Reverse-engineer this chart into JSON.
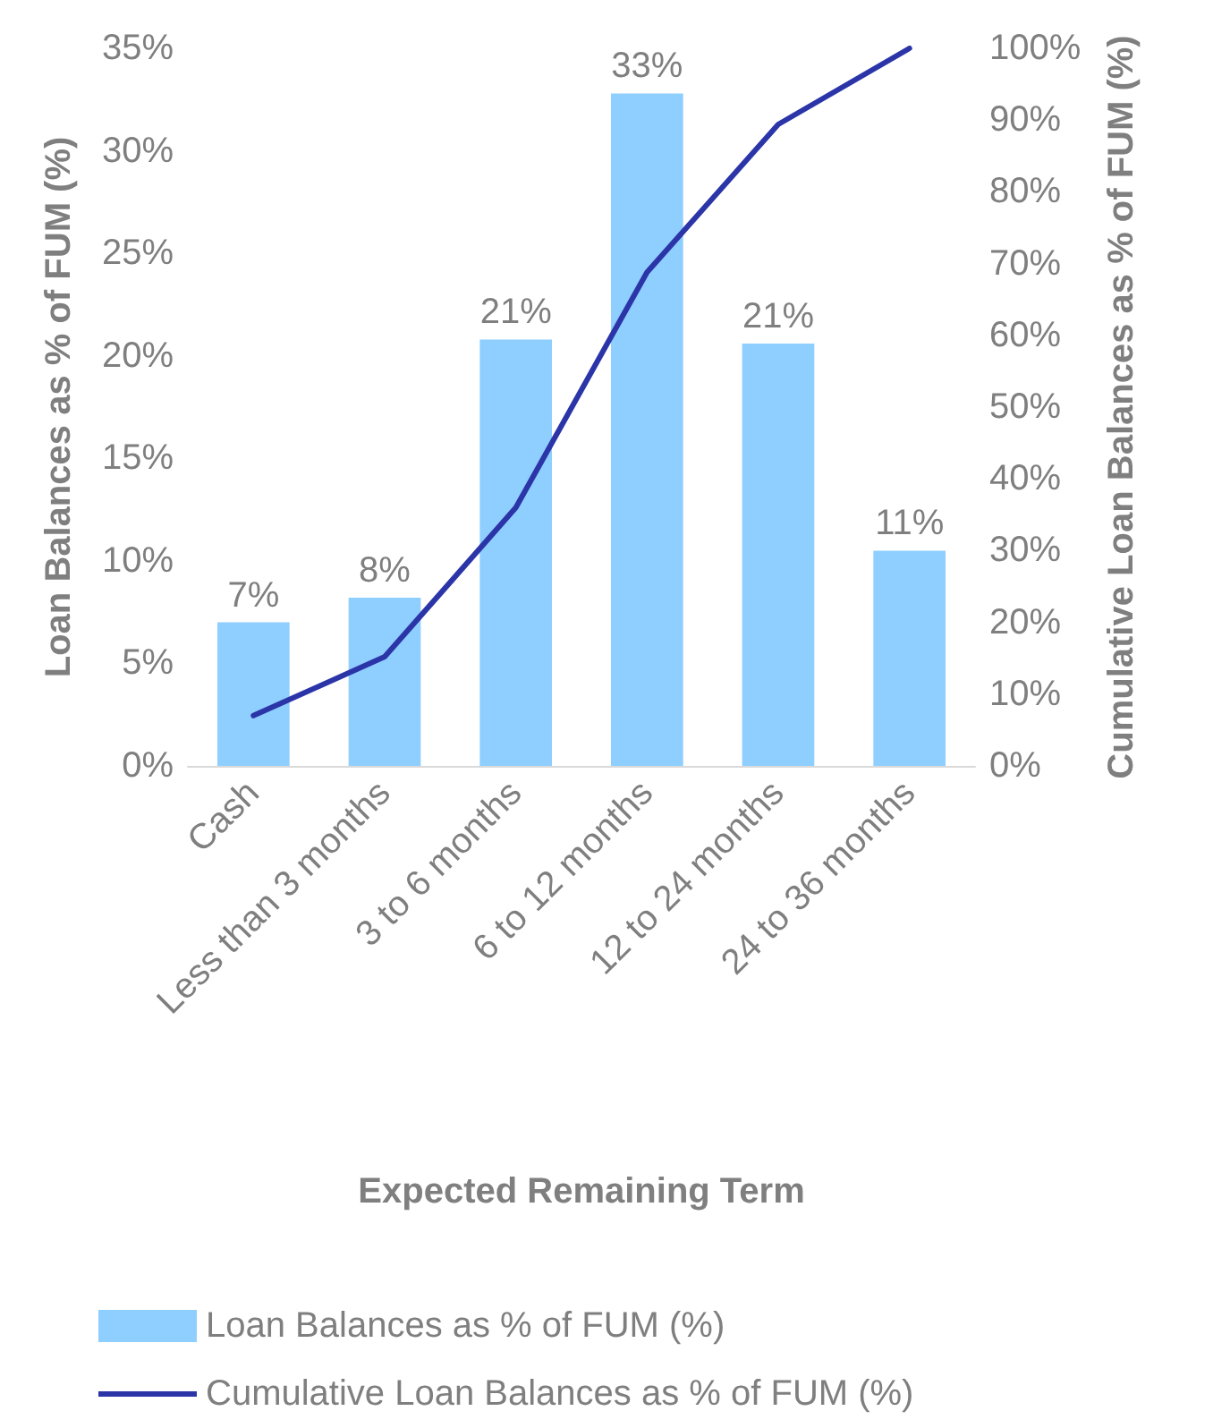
{
  "chart_data": {
    "type": "bar",
    "xlabel": "Expected Remaining Term",
    "ylabel": "Loan Balances as % of FUM (%)",
    "y2label": "Cumulative Loan Balances as % of FUM (%)",
    "categories": [
      "Cash",
      "Less than 3 months",
      "3 to 6 months",
      "6 to 12 months",
      "12 to 24 months",
      "24 to 36 months"
    ],
    "series": [
      {
        "name": "Loan Balances as % of FUM (%)",
        "color": "#8ecfff",
        "values": [
          7.0,
          8.2,
          20.8,
          32.8,
          20.6,
          10.5
        ],
        "value_labels": [
          "7%",
          "8%",
          "21%",
          "33%",
          "21%",
          "11%"
        ]
      },
      {
        "name": "Cumulative Loan Balances as % of FUM (%)",
        "type": "line",
        "axis": "y2",
        "color": "#2b35a8",
        "values": [
          7.0,
          15.2,
          36.0,
          68.8,
          89.4,
          100
        ]
      }
    ],
    "ylim": [
      0,
      35
    ],
    "yticks": [
      {
        "value": 0,
        "label": "0%"
      },
      {
        "value": 5,
        "label": "5%"
      },
      {
        "value": 10,
        "label": "10%"
      },
      {
        "value": 15,
        "label": "15%"
      },
      {
        "value": 20,
        "label": "20%"
      },
      {
        "value": 25,
        "label": "25%"
      },
      {
        "value": 30,
        "label": "30%"
      },
      {
        "value": 35,
        "label": "35%"
      }
    ],
    "y2lim": [
      0,
      100
    ],
    "y2ticks": [
      {
        "value": 0,
        "label": "0%"
      },
      {
        "value": 10,
        "label": "10%"
      },
      {
        "value": 20,
        "label": "20%"
      },
      {
        "value": 30,
        "label": "30%"
      },
      {
        "value": 40,
        "label": "40%"
      },
      {
        "value": 50,
        "label": "50%"
      },
      {
        "value": 60,
        "label": "60%"
      },
      {
        "value": 70,
        "label": "70%"
      },
      {
        "value": 80,
        "label": "80%"
      },
      {
        "value": 90,
        "label": "90%"
      },
      {
        "value": 100,
        "label": "100%"
      }
    ],
    "grid": false,
    "legend": "bottom",
    "marker": "none",
    "line_style": "solid"
  }
}
